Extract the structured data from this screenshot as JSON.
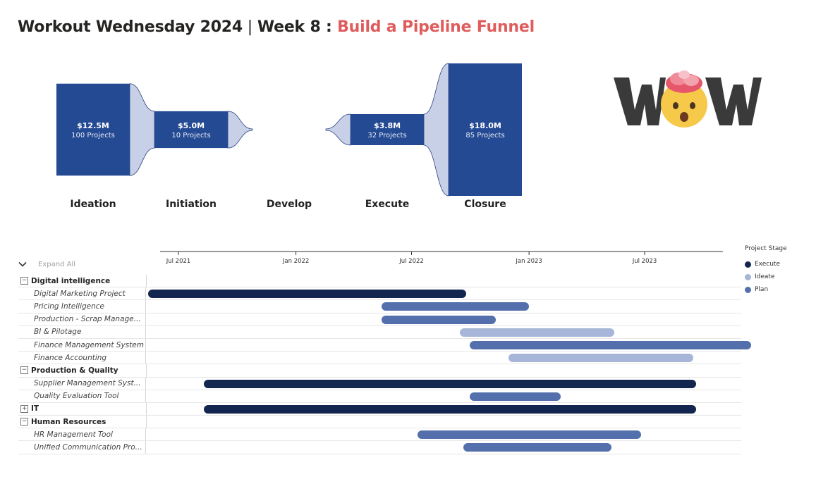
{
  "title": {
    "main": "Workout Wednesday 2024",
    "sep": " | ",
    "week": "Week 8 : ",
    "accent": "Build a Pipeline Funnel"
  },
  "colors": {
    "funnel_bar": "#244a93",
    "funnel_connector": "#c7d0e6",
    "execute": "#13264f",
    "ideate": "#a7b6d8",
    "plan": "#5470ac",
    "title_accent": "#e05c5c"
  },
  "funnel": {
    "stages": [
      {
        "name": "Ideation",
        "value": "$12.5M",
        "projects": "100 Projects",
        "amount": 12.5
      },
      {
        "name": "Initiation",
        "value": "$5.0M",
        "projects": "10 Projects",
        "amount": 5.0
      },
      {
        "name": "Develop",
        "value": "",
        "projects": "",
        "amount": 0
      },
      {
        "name": "Execute",
        "value": "$3.8M",
        "projects": "32 Projects",
        "amount": 3.8
      },
      {
        "name": "Closure",
        "value": "$18.0M",
        "projects": "85 Projects",
        "amount": 18.0
      }
    ]
  },
  "logo": {
    "text": "WOW",
    "emoji": "exploding-head-emoji"
  },
  "gantt": {
    "expand_all": "Expand All",
    "axis_ticks": [
      "Jul 2021",
      "Jan 2022",
      "Jul 2022",
      "Jan 2023",
      "Jul 2023"
    ],
    "axis_range": [
      "2021-05-01",
      "2023-12-20"
    ],
    "rows": [
      {
        "type": "group",
        "label": "Digital intelligence",
        "toggle": "−"
      },
      {
        "type": "item",
        "label": "Digital Marketing Project",
        "stage": "Execute",
        "start": "2021-05-15",
        "end": "2022-09-25"
      },
      {
        "type": "item",
        "label": "Pricing Intelligence",
        "stage": "Plan",
        "start": "2022-05-15",
        "end": "2023-01-01"
      },
      {
        "type": "item",
        "label": "Production - Scrap Manage...",
        "stage": "Plan",
        "start": "2022-05-15",
        "end": "2022-11-10"
      },
      {
        "type": "item",
        "label": "BI & Pilotage",
        "stage": "Ideate",
        "start": "2022-09-15",
        "end": "2023-05-15"
      },
      {
        "type": "item",
        "label": "Finance Management System",
        "stage": "Plan",
        "start": "2022-09-30",
        "end": "2023-12-15"
      },
      {
        "type": "item",
        "label": "Finance Accounting",
        "stage": "Ideate",
        "start": "2022-11-30",
        "end": "2023-09-15"
      },
      {
        "type": "group",
        "label": "Production & Quality",
        "toggle": "−"
      },
      {
        "type": "item",
        "label": "Supplier Management Syst...",
        "stage": "Execute",
        "start": "2021-08-10",
        "end": "2023-09-20"
      },
      {
        "type": "item",
        "label": "Quality Evaluation Tool",
        "stage": "Plan",
        "start": "2022-09-30",
        "end": "2023-02-20"
      },
      {
        "type": "group",
        "label": "IT",
        "toggle": "+",
        "stage": "Execute",
        "start": "2021-08-10",
        "end": "2023-09-20"
      },
      {
        "type": "group",
        "label": "Human Resources",
        "toggle": "−"
      },
      {
        "type": "item",
        "label": "HR Management Tool",
        "stage": "Plan",
        "start": "2022-07-10",
        "end": "2023-06-25"
      },
      {
        "type": "item",
        "label": "Unified Communication Pro...",
        "stage": "Plan",
        "start": "2022-09-20",
        "end": "2023-05-10"
      }
    ]
  },
  "legend": {
    "title": "Project Stage",
    "items": [
      {
        "label": "Execute",
        "color": "#13264f"
      },
      {
        "label": "Ideate",
        "color": "#a7b6d8"
      },
      {
        "label": "Plan",
        "color": "#5470ac"
      }
    ]
  }
}
